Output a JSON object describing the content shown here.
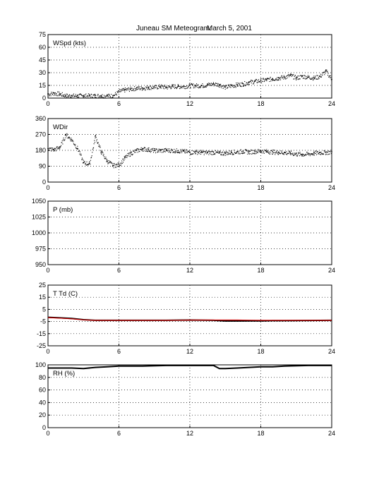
{
  "title_left": "Juneau SM Meteogram:",
  "title_right": "March  5, 2001",
  "chart_data": [
    {
      "type": "scatter",
      "ylabel": "WSpd (kts)",
      "xlim": [
        0,
        24
      ],
      "ylim": [
        0,
        75
      ],
      "xticks": [
        0,
        6,
        12,
        18,
        24
      ],
      "yticks": [
        0,
        15,
        30,
        45,
        60,
        75
      ],
      "grid": true,
      "series": [
        {
          "color": "#000000",
          "marker": "dot",
          "x": [
            0,
            0.5,
            1,
            1.5,
            2,
            2.5,
            3,
            3.5,
            4,
            4.5,
            5,
            5.5,
            6,
            6.5,
            7,
            7.5,
            8,
            8.5,
            9,
            9.5,
            10,
            10.5,
            11,
            11.5,
            12,
            12.5,
            13,
            13.5,
            14,
            14.5,
            15,
            15.5,
            16,
            16.5,
            17,
            17.5,
            18,
            18.5,
            19,
            19.5,
            20,
            20.5,
            21,
            21.5,
            22,
            22.5,
            23,
            23.5,
            24
          ],
          "y": [
            5,
            6,
            5,
            3,
            3,
            3,
            3,
            3,
            3,
            3,
            3,
            3,
            8,
            10,
            11,
            12,
            12,
            13,
            13,
            14,
            13,
            14,
            14,
            14,
            15,
            15,
            15,
            16,
            17,
            16,
            13,
            15,
            16,
            17,
            19,
            20,
            21,
            22,
            23,
            24,
            25,
            27,
            24,
            26,
            25,
            24,
            26,
            32,
            22
          ]
        }
      ]
    },
    {
      "type": "scatter",
      "ylabel": "WDir",
      "xlim": [
        0,
        24
      ],
      "ylim": [
        0,
        360
      ],
      "xticks": [
        0,
        6,
        12,
        18,
        24
      ],
      "yticks": [
        0,
        90,
        180,
        270,
        360
      ],
      "grid": true,
      "series": [
        {
          "color": "#000000",
          "marker": "dot",
          "x": [
            0,
            0.5,
            1,
            1.5,
            2,
            2.5,
            3,
            3.5,
            4,
            4.5,
            5,
            5.5,
            6,
            6.5,
            7,
            7.5,
            8,
            8.5,
            9,
            9.5,
            10,
            10.5,
            11,
            11.5,
            12,
            12.5,
            13,
            13.5,
            14,
            14.5,
            15,
            15.5,
            16,
            16.5,
            17,
            17.5,
            18,
            18.5,
            19,
            19.5,
            20,
            20.5,
            21,
            21.5,
            22,
            22.5,
            23,
            23.5,
            24
          ],
          "y": [
            190,
            185,
            200,
            270,
            240,
            190,
            110,
            105,
            260,
            170,
            120,
            95,
            100,
            140,
            165,
            180,
            190,
            185,
            180,
            180,
            182,
            180,
            178,
            175,
            170,
            172,
            170,
            168,
            170,
            165,
            165,
            170,
            172,
            175,
            172,
            175,
            178,
            175,
            172,
            170,
            168,
            165,
            160,
            158,
            160,
            165,
            168,
            170,
            172
          ]
        }
      ]
    },
    {
      "type": "scatter",
      "ylabel": "P (mb)",
      "xlim": [
        0,
        24
      ],
      "ylim": [
        950,
        1050
      ],
      "xticks": [
        0,
        6,
        12,
        18,
        24
      ],
      "yticks": [
        950,
        975,
        1000,
        1025,
        1050
      ],
      "grid": true,
      "series": []
    },
    {
      "type": "line",
      "ylabel": "T Td (C)",
      "xlim": [
        0,
        24
      ],
      "ylim": [
        -25,
        25
      ],
      "xticks": [
        0,
        6,
        12,
        18,
        24
      ],
      "yticks": [
        -25,
        -15,
        -5,
        5,
        15,
        25
      ],
      "grid": true,
      "series": [
        {
          "color": "#000000",
          "x": [
            0,
            1,
            2,
            3,
            4,
            5,
            6,
            8,
            10,
            12,
            14,
            15,
            16,
            17,
            18,
            19,
            20,
            22,
            24
          ],
          "y": [
            -1.5,
            -2,
            -2.5,
            -3.5,
            -4,
            -4,
            -4,
            -4,
            -4,
            -3.8,
            -4,
            -4.6,
            -4.6,
            -4.5,
            -4.5,
            -4.3,
            -4.3,
            -4.1,
            -4
          ]
        },
        {
          "color": "#d00000",
          "x": [
            0,
            1,
            2,
            3,
            4,
            5,
            6,
            8,
            10,
            12,
            14,
            15,
            16,
            17,
            18,
            19,
            20,
            22,
            24
          ],
          "y": [
            -1.8,
            -2.2,
            -2.8,
            -3.6,
            -4,
            -4,
            -4,
            -4,
            -4,
            -3.8,
            -3.8,
            -3.8,
            -3.8,
            -3.9,
            -4,
            -4,
            -4,
            -4,
            -4
          ]
        }
      ]
    },
    {
      "type": "line",
      "ylabel": "RH (%)",
      "xlim": [
        0,
        24
      ],
      "ylim": [
        0,
        100
      ],
      "xticks": [
        0,
        6,
        12,
        18,
        24
      ],
      "yticks": [
        0,
        20,
        40,
        60,
        80,
        100
      ],
      "grid": true,
      "series": [
        {
          "color": "#000000",
          "x": [
            0,
            1,
            2,
            3,
            4,
            5,
            6,
            8,
            10,
            12,
            14,
            14.5,
            15,
            16,
            17,
            18,
            19,
            20,
            22,
            24
          ],
          "y": [
            95,
            95,
            95,
            94,
            96,
            97,
            98,
            98,
            99,
            99,
            99,
            94,
            94,
            95,
            96,
            97,
            97,
            98,
            99,
            99
          ]
        }
      ]
    }
  ]
}
